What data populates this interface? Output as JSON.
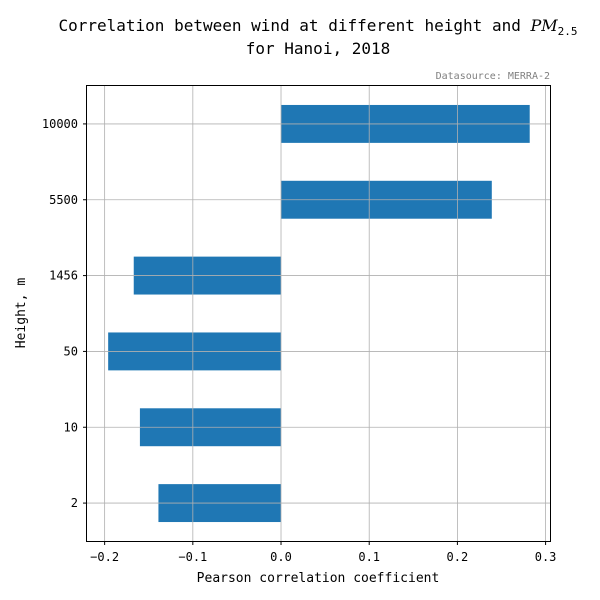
{
  "chart_data": {
    "type": "bar",
    "orientation": "horizontal",
    "title_line1_prefix": "Correlation between wind at different height and ",
    "title_pm": "PM",
    "title_pm_sub": "2.5",
    "title_line2": "for Hanoi, 2018",
    "source": "Datasource: MERRA-2",
    "xlabel": "Pearson correlation coefficient",
    "ylabel": "Height, m",
    "categories": [
      "2",
      "10",
      "50",
      "1456",
      "5500",
      "10000"
    ],
    "values": [
      -0.139,
      -0.16,
      -0.196,
      -0.167,
      0.239,
      0.282
    ],
    "xlim": [
      -0.22,
      0.305
    ],
    "xticks": [
      -0.2,
      -0.1,
      0.0,
      0.1,
      0.2,
      0.3
    ],
    "xtick_labels": [
      "−0.2",
      "−0.1",
      "0.0",
      "0.1",
      "0.2",
      "0.3"
    ],
    "grid": true,
    "bar_color": "#1f77b4"
  }
}
